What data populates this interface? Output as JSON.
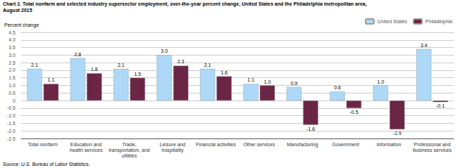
{
  "chart_data": {
    "type": "bar",
    "title": "Chart 2. Total nonfarm and selected industry supersector employment, over-the-year percent change, United States and the Philadelphia metropolitan area,",
    "subtitle": "August 2015",
    "ylabel": "Percent change",
    "source": "Source: U.S. Bureau of Labor Statistics.",
    "categories": [
      "Total nonfarm",
      "Education and\nhealth services",
      "Trade,\ntransportation, and\nutilities",
      "Leisure and\nhospitality",
      "Financial activities",
      "Other services",
      "Manufacturing",
      "Government",
      "Information",
      "Professional and\nbusiness services"
    ],
    "series": [
      {
        "name": "United States",
        "color": "#add8f7",
        "values": [
          2.1,
          2.8,
          2.1,
          3.0,
          2.1,
          1.1,
          0.9,
          0.6,
          1.0,
          3.4
        ],
        "value_labels": [
          "2.1",
          "2.8",
          "2.1",
          "3.0",
          "2.1",
          "1.1",
          "0.9",
          "0.6",
          "1.0",
          "3.4"
        ]
      },
      {
        "name": "Philadelphia",
        "color": "#6b2545",
        "values": [
          1.1,
          1.8,
          1.5,
          2.3,
          1.6,
          1.0,
          -1.6,
          -0.5,
          -1.9,
          -0.1
        ],
        "value_labels": [
          "1.1",
          "1.8",
          "1.5",
          "2.3",
          "1.6",
          "1.0",
          "-1.6",
          "-0.5",
          "-1.9",
          "-0.1"
        ]
      }
    ],
    "ylim": [
      -2.5,
      4.5
    ],
    "yticks": [
      -2.5,
      {
        "value": -2.0,
        "label": "-2.0"
      },
      -1.5,
      {
        "value": -1.0,
        "label": "-1.0"
      },
      -0.5,
      0,
      0.5,
      {
        "value": 1.0,
        "label": "1.0"
      },
      1.5,
      {
        "value": 2.0,
        "label": "2.0"
      },
      2.5,
      {
        "value": 3.0,
        "label": "3.0"
      },
      3.5,
      {
        "value": 4.0,
        "label": "4.0"
      },
      4.5
    ],
    "data_labels": true,
    "grid": true,
    "legend": "upper right"
  }
}
